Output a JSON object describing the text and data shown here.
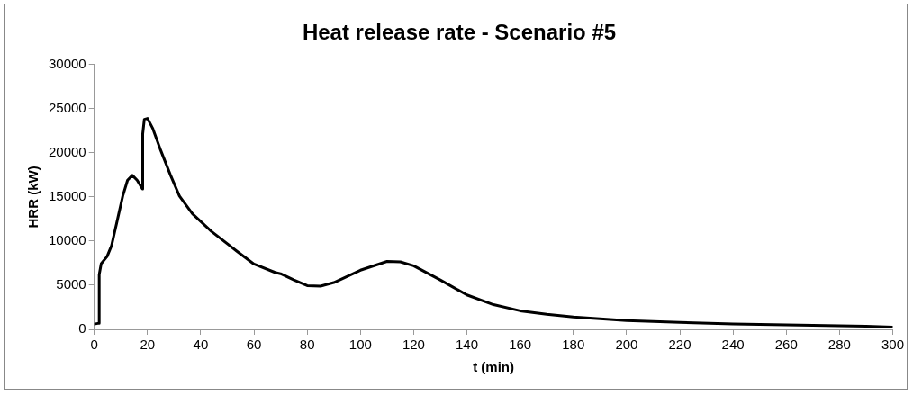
{
  "chart_data": {
    "type": "line",
    "title": "Heat release rate - Scenario #5",
    "xlabel": "t (min)",
    "ylabel": "HRR (kW)",
    "x": [
      0,
      1.8,
      1.85,
      2.6,
      4.8,
      6.5,
      8.3,
      10.7,
      12.5,
      14.3,
      16.1,
      18.1,
      18.2,
      18.8,
      20,
      22,
      25,
      28.6,
      32,
      36.9,
      44,
      53.6,
      60,
      67.9,
      70,
      75,
      80,
      85,
      90,
      100,
      110,
      115,
      120,
      130,
      140,
      150,
      160,
      170,
      180,
      200,
      220,
      240,
      260,
      280,
      290,
      300
    ],
    "series": [
      {
        "color": "#000000",
        "values": [
          600,
          700,
          6200,
          7450,
          8250,
          9500,
          11900,
          15100,
          16900,
          17450,
          16900,
          15900,
          22150,
          23800,
          23900,
          22750,
          20250,
          17500,
          15100,
          13100,
          11100,
          8850,
          7400,
          6450,
          6300,
          5600,
          4950,
          4900,
          5300,
          6700,
          7700,
          7650,
          7200,
          5600,
          3900,
          2800,
          2100,
          1700,
          1400,
          1000,
          800,
          600,
          500,
          400,
          350,
          250
        ]
      }
    ],
    "xlim": [
      0,
      300
    ],
    "xticks": [
      0,
      20,
      40,
      60,
      80,
      100,
      120,
      140,
      160,
      180,
      200,
      220,
      240,
      260,
      280,
      300
    ],
    "ylim": [
      0,
      30000
    ],
    "yticks": [
      0,
      5000,
      10000,
      15000,
      20000,
      25000,
      30000
    ],
    "grid": false,
    "legend": false,
    "marker": "none",
    "line_style": "solid"
  }
}
